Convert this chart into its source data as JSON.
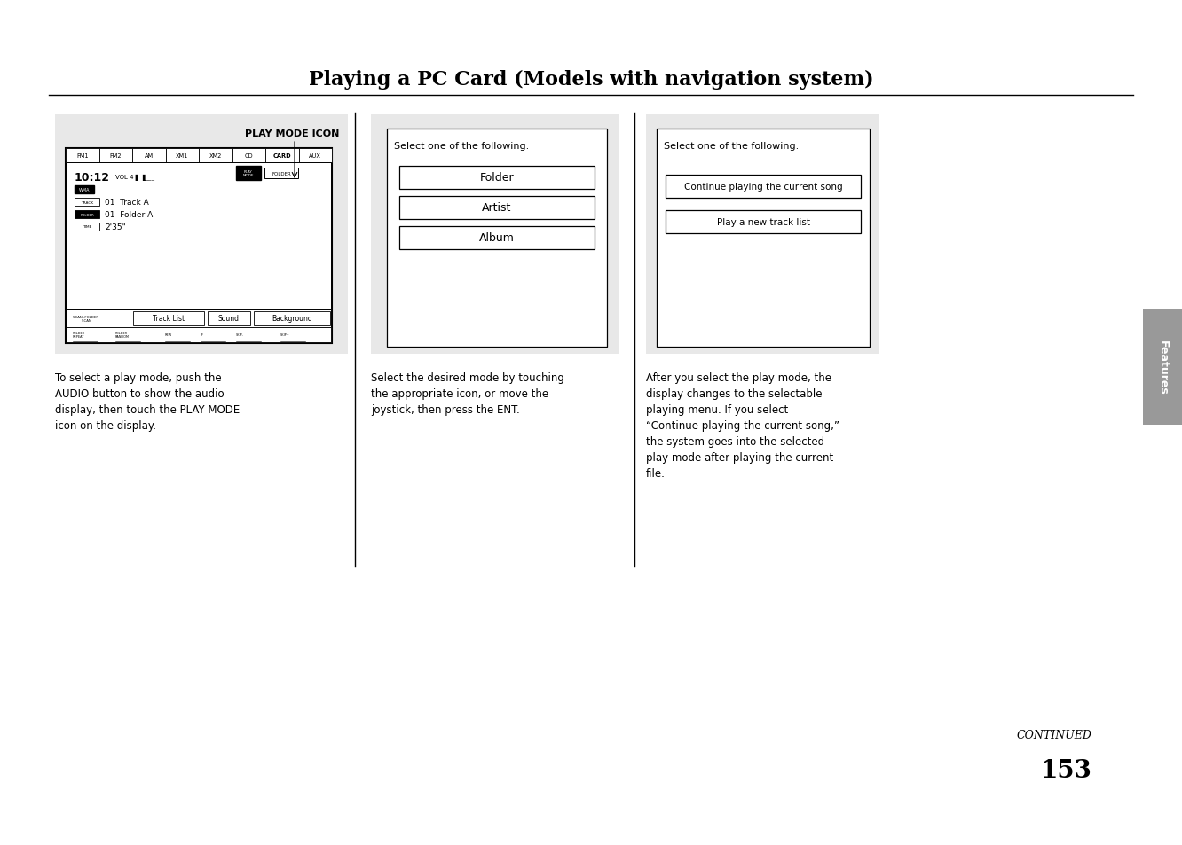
{
  "title": "Playing a PC Card (Models with navigation system)",
  "bg_color": "#ffffff",
  "panel_bg": "#e8e8e8",
  "page_number": "153",
  "continued_text": "CONTINUED",
  "col1_text": "To select a play mode, push the\nAUDIO button to show the audio\ndisplay, then touch the PLAY MODE\nicon on the display.",
  "col2_text": "Select the desired mode by touching\nthe appropriate icon, or move the\njoystick, then press the ENT.",
  "col3_text": "After you select the play mode, the\ndisplay changes to the selectable\nplaying menu. If you select\n“Continue playing the current song,”\nthe system goes into the selected\nplay mode after playing the current\nfile.",
  "play_mode_icon_label": "PLAY MODE ICON",
  "screen_tabs": [
    "FM1",
    "FM2",
    "AM",
    "XM1",
    "XM2",
    "CD",
    "CARD",
    "AUX"
  ],
  "col2_select_text": "Select one of the following:",
  "col2_options": [
    "Folder",
    "Artist",
    "Album"
  ],
  "col3_select_text": "Select one of the following:",
  "col3_options": [
    "Continue playing the current song",
    "Play a new track list"
  ],
  "features_tab": "Features",
  "screen_bottom_btns": [
    "Track List",
    "Sound",
    "Background"
  ],
  "footer_labels": [
    "FOLDER\nREPEAT",
    "FOLDER\nRANDOM",
    "REW",
    "FF",
    "SKIP-",
    "SKIP+"
  ]
}
